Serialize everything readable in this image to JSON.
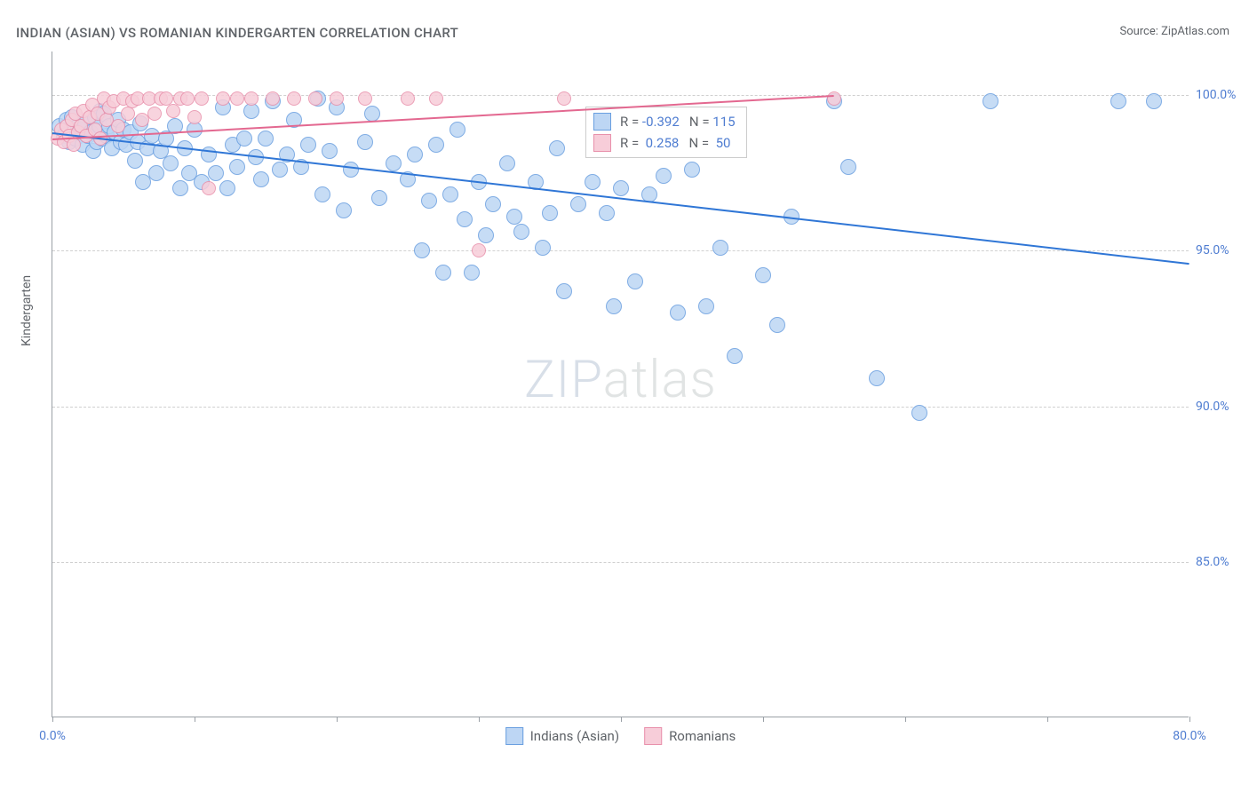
{
  "title": "INDIAN (ASIAN) VS ROMANIAN KINDERGARTEN CORRELATION CHART",
  "source": "Source: ZipAtlas.com",
  "yaxis_label": "Kindergarten",
  "chart": {
    "type": "scatter",
    "xlim": [
      0,
      80
    ],
    "ylim": [
      80,
      101.4
    ],
    "xticks": [
      0,
      10,
      20,
      30,
      40,
      50,
      60,
      70,
      80
    ],
    "xticks_major": [
      0,
      80
    ],
    "yticks": [
      85,
      90,
      95,
      100
    ],
    "ytick_fmt": "%",
    "grid_color": "#d0d0d0",
    "background": "#ffffff",
    "marker_radius_blue": 9,
    "marker_radius_pink": 8,
    "colors": {
      "blue_fill": "#bdd6f4",
      "blue_stroke": "#6a9fe0",
      "pink_fill": "#f7cdd9",
      "pink_stroke": "#e890ab",
      "blue_line": "#2f76d6",
      "pink_line": "#e36890",
      "text_value": "#4f7dd1"
    },
    "series": [
      {
        "name": "Indians (Asian)",
        "color_key": "blue",
        "R": "-0.392",
        "N": "115",
        "trend": {
          "x1": 0,
          "y1": 98.8,
          "x2": 80,
          "y2": 94.6
        },
        "points": [
          [
            0.5,
            99.0
          ],
          [
            0.8,
            98.7
          ],
          [
            1.0,
            99.2
          ],
          [
            1.2,
            98.5
          ],
          [
            1.4,
            99.3
          ],
          [
            1.6,
            98.6
          ],
          [
            1.8,
            99.0
          ],
          [
            2.0,
            98.9
          ],
          [
            2.1,
            98.4
          ],
          [
            2.3,
            99.1
          ],
          [
            2.5,
            98.7
          ],
          [
            2.7,
            98.8
          ],
          [
            2.9,
            98.2
          ],
          [
            3.0,
            99.3
          ],
          [
            3.1,
            98.5
          ],
          [
            3.3,
            99.0
          ],
          [
            3.4,
            99.5
          ],
          [
            3.5,
            98.6
          ],
          [
            3.6,
            99.4
          ],
          [
            3.8,
            98.7
          ],
          [
            4.0,
            99.0
          ],
          [
            4.2,
            98.3
          ],
          [
            4.4,
            98.8
          ],
          [
            4.6,
            99.2
          ],
          [
            4.8,
            98.5
          ],
          [
            5.0,
            98.9
          ],
          [
            5.2,
            98.4
          ],
          [
            5.5,
            98.8
          ],
          [
            5.8,
            97.9
          ],
          [
            6.0,
            98.5
          ],
          [
            6.2,
            99.1
          ],
          [
            6.4,
            97.2
          ],
          [
            6.7,
            98.3
          ],
          [
            7.0,
            98.7
          ],
          [
            7.3,
            97.5
          ],
          [
            7.6,
            98.2
          ],
          [
            8.0,
            98.6
          ],
          [
            8.3,
            97.8
          ],
          [
            8.6,
            99.0
          ],
          [
            9.0,
            97.0
          ],
          [
            9.3,
            98.3
          ],
          [
            9.6,
            97.5
          ],
          [
            10.0,
            98.9
          ],
          [
            10.5,
            97.2
          ],
          [
            11.0,
            98.1
          ],
          [
            11.5,
            97.5
          ],
          [
            12.0,
            99.6
          ],
          [
            12.3,
            97.0
          ],
          [
            12.7,
            98.4
          ],
          [
            13.0,
            97.7
          ],
          [
            13.5,
            98.6
          ],
          [
            14.0,
            99.5
          ],
          [
            14.3,
            98.0
          ],
          [
            14.7,
            97.3
          ],
          [
            15.0,
            98.6
          ],
          [
            15.5,
            99.8
          ],
          [
            16.0,
            97.6
          ],
          [
            16.5,
            98.1
          ],
          [
            17.0,
            99.2
          ],
          [
            17.5,
            97.7
          ],
          [
            18.0,
            98.4
          ],
          [
            18.7,
            99.9
          ],
          [
            19.0,
            96.8
          ],
          [
            19.5,
            98.2
          ],
          [
            20.0,
            99.6
          ],
          [
            20.5,
            96.3
          ],
          [
            21.0,
            97.6
          ],
          [
            22.0,
            98.5
          ],
          [
            22.5,
            99.4
          ],
          [
            23.0,
            96.7
          ],
          [
            24.0,
            97.8
          ],
          [
            25.0,
            97.3
          ],
          [
            25.5,
            98.1
          ],
          [
            26.0,
            95.0
          ],
          [
            26.5,
            96.6
          ],
          [
            27.0,
            98.4
          ],
          [
            27.5,
            94.3
          ],
          [
            28.0,
            96.8
          ],
          [
            28.5,
            98.9
          ],
          [
            29.0,
            96.0
          ],
          [
            29.5,
            94.3
          ],
          [
            30.0,
            97.2
          ],
          [
            30.5,
            95.5
          ],
          [
            31.0,
            96.5
          ],
          [
            32.0,
            97.8
          ],
          [
            32.5,
            96.1
          ],
          [
            33.0,
            95.6
          ],
          [
            34.0,
            97.2
          ],
          [
            34.5,
            95.1
          ],
          [
            35.0,
            96.2
          ],
          [
            35.5,
            98.3
          ],
          [
            36.0,
            93.7
          ],
          [
            37.0,
            96.5
          ],
          [
            38.0,
            97.2
          ],
          [
            39.0,
            96.2
          ],
          [
            39.5,
            93.2
          ],
          [
            40.0,
            97.0
          ],
          [
            41.0,
            94.0
          ],
          [
            42.0,
            96.8
          ],
          [
            43.0,
            97.4
          ],
          [
            44.0,
            93.0
          ],
          [
            45.0,
            97.6
          ],
          [
            46.0,
            93.2
          ],
          [
            47.0,
            95.1
          ],
          [
            48.0,
            91.6
          ],
          [
            50.0,
            94.2
          ],
          [
            51.0,
            92.6
          ],
          [
            52.0,
            96.1
          ],
          [
            55.0,
            99.8
          ],
          [
            56.0,
            97.7
          ],
          [
            58.0,
            90.9
          ],
          [
            61.0,
            89.8
          ],
          [
            66.0,
            99.8
          ],
          [
            75.0,
            99.8
          ],
          [
            77.5,
            99.8
          ]
        ]
      },
      {
        "name": "Romanians",
        "color_key": "pink",
        "R": "0.258",
        "N": "50",
        "trend": {
          "x1": 0,
          "y1": 98.6,
          "x2": 55,
          "y2": 100.0
        },
        "points": [
          [
            0.4,
            98.6
          ],
          [
            0.6,
            98.9
          ],
          [
            0.8,
            98.5
          ],
          [
            1.0,
            99.0
          ],
          [
            1.2,
            98.7
          ],
          [
            1.4,
            99.2
          ],
          [
            1.5,
            98.4
          ],
          [
            1.6,
            99.4
          ],
          [
            1.8,
            98.8
          ],
          [
            2.0,
            99.0
          ],
          [
            2.2,
            99.5
          ],
          [
            2.4,
            98.7
          ],
          [
            2.6,
            99.3
          ],
          [
            2.8,
            99.7
          ],
          [
            3.0,
            98.9
          ],
          [
            3.2,
            99.4
          ],
          [
            3.4,
            98.6
          ],
          [
            3.6,
            99.9
          ],
          [
            3.8,
            99.2
          ],
          [
            4.0,
            99.6
          ],
          [
            4.3,
            99.8
          ],
          [
            4.6,
            99.0
          ],
          [
            5.0,
            99.9
          ],
          [
            5.3,
            99.4
          ],
          [
            5.6,
            99.8
          ],
          [
            6.0,
            99.9
          ],
          [
            6.3,
            99.2
          ],
          [
            6.8,
            99.9
          ],
          [
            7.2,
            99.4
          ],
          [
            7.6,
            99.9
          ],
          [
            8.0,
            99.9
          ],
          [
            8.5,
            99.5
          ],
          [
            9.0,
            99.9
          ],
          [
            9.5,
            99.9
          ],
          [
            10.0,
            99.3
          ],
          [
            10.5,
            99.9
          ],
          [
            11.0,
            97.0
          ],
          [
            12.0,
            99.9
          ],
          [
            13.0,
            99.9
          ],
          [
            14.0,
            99.9
          ],
          [
            15.5,
            99.9
          ],
          [
            17.0,
            99.9
          ],
          [
            18.5,
            99.9
          ],
          [
            20.0,
            99.9
          ],
          [
            22.0,
            99.9
          ],
          [
            25.0,
            99.9
          ],
          [
            27.0,
            99.9
          ],
          [
            30.0,
            95.0
          ],
          [
            36.0,
            99.9
          ],
          [
            55.0,
            99.9
          ]
        ]
      }
    ]
  },
  "legend": {
    "panel": {
      "rows": [
        {
          "swatch": "blue",
          "r_label": "R = ",
          "r_val": "-0.392",
          "n_label": "   N = ",
          "n_val": "115"
        },
        {
          "swatch": "pink",
          "r_label": "R = ",
          "r_val": " 0.258",
          "n_label": "   N = ",
          "n_val": " 50"
        }
      ]
    },
    "bottom": [
      {
        "swatch": "blue",
        "label": "Indians (Asian)"
      },
      {
        "swatch": "pink",
        "label": "Romanians"
      }
    ]
  },
  "watermark": {
    "part1": "ZIP",
    "part2": "atlas"
  }
}
